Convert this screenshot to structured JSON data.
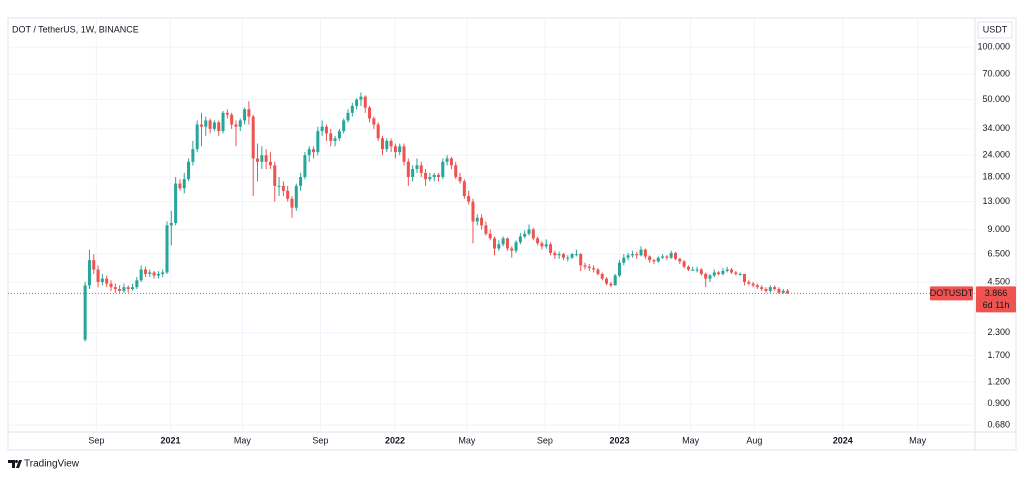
{
  "chart_data": {
    "type": "candlestick",
    "title": "DOT / TetherUS, 1W, BINANCE",
    "currency": "USDT",
    "symbol_label": "DOTUSDT",
    "countdown": "6d 11h",
    "brand": "TradingView",
    "up_color": "#26a69a",
    "down_color": "#ef5350",
    "log_scale": true,
    "grid": true,
    "ylim": [
      0.62,
      147
    ],
    "yticks": [
      {
        "value": 100,
        "label": "100.000"
      },
      {
        "value": 70,
        "label": "70.000"
      },
      {
        "value": 50,
        "label": "50.000"
      },
      {
        "value": 34,
        "label": "34.000"
      },
      {
        "value": 24,
        "label": "24.000"
      },
      {
        "value": 18,
        "label": "18.000"
      },
      {
        "value": 13,
        "label": "13.000"
      },
      {
        "value": 9,
        "label": "9.000"
      },
      {
        "value": 6.5,
        "label": "6.500"
      },
      {
        "value": 4.5,
        "label": "4.500"
      },
      {
        "value": 2.3,
        "label": "2.300"
      },
      {
        "value": 1.7,
        "label": "1.700"
      },
      {
        "value": 1.2,
        "label": "1.200"
      },
      {
        "value": 0.9,
        "label": "0.900"
      },
      {
        "value": 0.68,
        "label": "0.680"
      }
    ],
    "xlim": [
      -17.9,
      206.5
    ],
    "xticks": [
      {
        "value": 2.6,
        "label": "Sep"
      },
      {
        "value": 19.8,
        "label": "2021"
      },
      {
        "value": 36.5,
        "label": "May"
      },
      {
        "value": 54.6,
        "label": "Sep"
      },
      {
        "value": 71.9,
        "label": "2022"
      },
      {
        "value": 88.6,
        "label": "May"
      },
      {
        "value": 106.7,
        "label": "Sep"
      },
      {
        "value": 124,
        "label": "2023"
      },
      {
        "value": 140.5,
        "label": "May"
      },
      {
        "value": 155.3,
        "label": "Aug"
      },
      {
        "value": 175.8,
        "label": "2024"
      },
      {
        "value": 193.2,
        "label": "May"
      }
    ],
    "candles": [
      [
        2.1,
        4.5,
        2.05,
        4.3
      ],
      [
        4.3,
        6.9,
        4.1,
        6.0
      ],
      [
        6.0,
        6.5,
        5.0,
        5.3
      ],
      [
        5.3,
        5.6,
        4.2,
        4.5
      ],
      [
        4.5,
        5.0,
        4.3,
        4.7
      ],
      [
        4.7,
        4.9,
        4.2,
        4.4
      ],
      [
        4.4,
        4.6,
        4.0,
        4.2
      ],
      [
        4.2,
        4.4,
        3.9,
        4.1
      ],
      [
        4.1,
        4.3,
        3.9,
        4.0
      ],
      [
        4.0,
        4.4,
        3.9,
        4.2
      ],
      [
        4.2,
        4.3,
        3.9,
        4.1
      ],
      [
        4.1,
        4.4,
        4.0,
        4.2
      ],
      [
        4.2,
        4.8,
        4.1,
        4.6
      ],
      [
        4.6,
        5.6,
        4.5,
        5.3
      ],
      [
        5.3,
        5.5,
        4.8,
        5.0
      ],
      [
        5.0,
        5.3,
        4.8,
        5.1
      ],
      [
        5.1,
        5.2,
        4.7,
        4.9
      ],
      [
        4.9,
        5.2,
        4.7,
        5.0
      ],
      [
        5.0,
        5.3,
        4.8,
        5.1
      ],
      [
        5.1,
        10,
        5.0,
        9.5
      ],
      [
        9.5,
        11.5,
        7.3,
        9.8
      ],
      [
        9.8,
        18,
        9.5,
        16.5
      ],
      [
        16.5,
        17.5,
        15,
        15.5
      ],
      [
        15.5,
        19,
        14.5,
        17.5
      ],
      [
        17.5,
        23,
        17,
        22
      ],
      [
        22,
        29,
        21,
        26
      ],
      [
        26,
        38,
        25,
        36
      ],
      [
        36,
        42,
        27,
        35
      ],
      [
        35,
        40,
        31,
        38
      ],
      [
        38,
        39,
        32,
        34
      ],
      [
        34,
        38,
        33,
        37
      ],
      [
        37,
        38,
        31,
        33
      ],
      [
        33,
        43,
        32,
        42
      ],
      [
        42,
        44,
        39,
        41
      ],
      [
        41,
        42,
        34,
        36
      ],
      [
        36,
        38,
        27,
        35
      ],
      [
        35,
        39,
        33,
        38
      ],
      [
        38,
        45,
        36,
        44
      ],
      [
        44,
        49,
        36,
        40
      ],
      [
        40,
        41,
        14,
        23
      ],
      [
        23,
        28,
        17,
        22
      ],
      [
        22,
        27,
        20,
        24
      ],
      [
        24,
        26,
        20,
        22
      ],
      [
        22,
        25,
        20,
        21
      ],
      [
        21,
        22,
        13,
        16
      ],
      [
        16,
        18,
        14,
        16
      ],
      [
        16,
        17,
        14,
        15
      ],
      [
        15,
        16,
        13,
        13.5
      ],
      [
        13.5,
        14,
        10.5,
        12
      ],
      [
        12,
        16.5,
        11.5,
        16
      ],
      [
        16,
        19,
        15,
        18
      ],
      [
        18,
        25,
        17.5,
        24
      ],
      [
        24,
        27,
        22,
        26
      ],
      [
        26,
        27,
        23,
        25
      ],
      [
        25,
        35,
        24,
        33
      ],
      [
        33,
        38,
        31,
        35
      ],
      [
        35,
        36,
        29,
        32
      ],
      [
        32,
        34,
        27,
        29
      ],
      [
        29,
        31,
        27,
        30
      ],
      [
        30,
        34,
        29,
        33
      ],
      [
        33,
        39,
        32,
        38
      ],
      [
        38,
        44,
        37,
        42
      ],
      [
        42,
        48,
        40,
        46
      ],
      [
        46,
        51,
        44,
        50
      ],
      [
        50,
        55,
        46,
        52
      ],
      [
        52,
        53,
        42,
        45
      ],
      [
        45,
        46,
        37,
        39
      ],
      [
        39,
        40,
        34,
        36
      ],
      [
        36,
        37,
        29,
        30
      ],
      [
        30,
        31,
        24,
        26
      ],
      [
        26,
        30,
        25,
        29
      ],
      [
        29,
        30,
        25,
        27
      ],
      [
        27,
        28,
        23,
        25
      ],
      [
        25,
        28,
        24,
        27
      ],
      [
        27,
        28,
        21,
        22
      ],
      [
        22,
        23,
        16,
        18
      ],
      [
        18,
        21,
        17,
        20
      ],
      [
        20,
        23,
        19,
        21
      ],
      [
        21,
        22,
        18,
        19
      ],
      [
        19,
        20,
        16,
        17.5
      ],
      [
        17.5,
        19,
        17,
        18
      ],
      [
        18,
        19,
        17,
        18.5
      ],
      [
        18.5,
        19,
        17,
        18
      ],
      [
        18,
        23,
        17.5,
        22
      ],
      [
        22,
        24,
        21,
        23
      ],
      [
        23,
        23.5,
        20,
        21
      ],
      [
        21,
        22,
        17.5,
        18
      ],
      [
        18,
        19,
        16.5,
        17
      ],
      [
        17,
        17.5,
        13.5,
        14
      ],
      [
        14,
        15,
        12.5,
        13
      ],
      [
        13,
        13.5,
        7.5,
        10
      ],
      [
        10,
        11,
        9.5,
        10.5
      ],
      [
        10.5,
        11,
        9,
        9.5
      ],
      [
        9.5,
        10,
        8.3,
        8.5
      ],
      [
        8.5,
        9,
        7.8,
        8
      ],
      [
        8,
        8.2,
        6.4,
        7
      ],
      [
        7,
        7.8,
        6.8,
        7.4
      ],
      [
        7.4,
        8.2,
        7.2,
        8
      ],
      [
        8,
        8.1,
        6.8,
        7
      ],
      [
        7,
        7.2,
        6.2,
        6.8
      ],
      [
        6.8,
        7.8,
        6.6,
        7.6
      ],
      [
        7.6,
        8.6,
        7.4,
        8.2
      ],
      [
        8.2,
        8.9,
        8,
        8.5
      ],
      [
        8.5,
        9.6,
        8.3,
        9.0
      ],
      [
        9,
        9.2,
        7.8,
        8
      ],
      [
        8,
        8.2,
        7.3,
        7.5
      ],
      [
        7.5,
        7.7,
        6.9,
        7.2
      ],
      [
        7.2,
        7.9,
        7,
        7.4
      ],
      [
        7.4,
        7.6,
        6.4,
        6.6
      ],
      [
        6.6,
        6.8,
        6.1,
        6.4
      ],
      [
        6.4,
        6.7,
        6.1,
        6.5
      ],
      [
        6.5,
        6.6,
        6,
        6.2
      ],
      [
        6.2,
        6.4,
        5.9,
        6.2
      ],
      [
        6.2,
        6.6,
        6.1,
        6.5
      ],
      [
        6.5,
        6.9,
        6.3,
        6.5
      ],
      [
        6.5,
        6.6,
        5.2,
        5.6
      ],
      [
        5.6,
        5.8,
        5.3,
        5.5
      ],
      [
        5.5,
        5.7,
        5.2,
        5.4
      ],
      [
        5.4,
        5.6,
        5.1,
        5.3
      ],
      [
        5.3,
        5.4,
        4.9,
        5.0
      ],
      [
        5,
        5.1,
        4.6,
        4.7
      ],
      [
        4.7,
        4.8,
        4.3,
        4.4
      ],
      [
        4.4,
        4.5,
        4.2,
        4.3
      ],
      [
        4.3,
        5,
        4.3,
        4.9
      ],
      [
        4.9,
        6,
        4.8,
        5.8
      ],
      [
        5.8,
        6.5,
        5.6,
        6.2
      ],
      [
        6.2,
        6.6,
        6,
        6.4
      ],
      [
        6.4,
        6.8,
        6.2,
        6.5
      ],
      [
        6.5,
        6.7,
        6.1,
        6.4
      ],
      [
        6.4,
        7.2,
        6.3,
        6.9
      ],
      [
        6.9,
        7,
        6.1,
        6.3
      ],
      [
        6.3,
        6.4,
        5.8,
        6.0
      ],
      [
        6,
        6.1,
        5.7,
        5.9
      ],
      [
        5.9,
        6.3,
        5.8,
        6.2
      ],
      [
        6.2,
        6.5,
        6.1,
        6.3
      ],
      [
        6.3,
        6.4,
        6,
        6.2
      ],
      [
        6.2,
        6.8,
        6.1,
        6.6
      ],
      [
        6.6,
        6.7,
        6,
        6.1
      ],
      [
        6.1,
        6.2,
        5.7,
        5.9
      ],
      [
        5.9,
        6,
        5.4,
        5.5
      ],
      [
        5.5,
        5.6,
        5.2,
        5.3
      ],
      [
        5.3,
        5.5,
        5.2,
        5.3
      ],
      [
        5.3,
        5.5,
        5.1,
        5.3
      ],
      [
        5.3,
        5.4,
        4.9,
        5
      ],
      [
        5,
        5.1,
        4.2,
        4.7
      ],
      [
        4.7,
        5,
        4.5,
        4.9
      ],
      [
        4.9,
        5.3,
        4.8,
        5.1
      ],
      [
        5.1,
        5.2,
        4.9,
        5
      ],
      [
        5,
        5.4,
        4.9,
        5.2
      ],
      [
        5.2,
        5.5,
        5.1,
        5.3
      ],
      [
        5.3,
        5.4,
        5,
        5.1
      ],
      [
        5.1,
        5.2,
        4.9,
        5
      ],
      [
        5,
        5.1,
        4.9,
        5
      ],
      [
        5,
        5,
        4.3,
        4.5
      ],
      [
        4.5,
        4.6,
        4.3,
        4.4
      ],
      [
        4.4,
        4.5,
        4.2,
        4.3
      ],
      [
        4.3,
        4.4,
        4.1,
        4.2
      ],
      [
        4.2,
        4.3,
        4,
        4.1
      ],
      [
        4.1,
        4.2,
        3.9,
        4
      ],
      [
        4,
        4.3,
        3.9,
        4.2
      ],
      [
        4.2,
        4.3,
        4,
        4.1
      ],
      [
        4.1,
        4.2,
        3.85,
        3.9
      ],
      [
        3.9,
        4.1,
        3.85,
        4.0
      ],
      [
        4.0,
        4.1,
        3.85,
        3.866
      ]
    ]
  }
}
